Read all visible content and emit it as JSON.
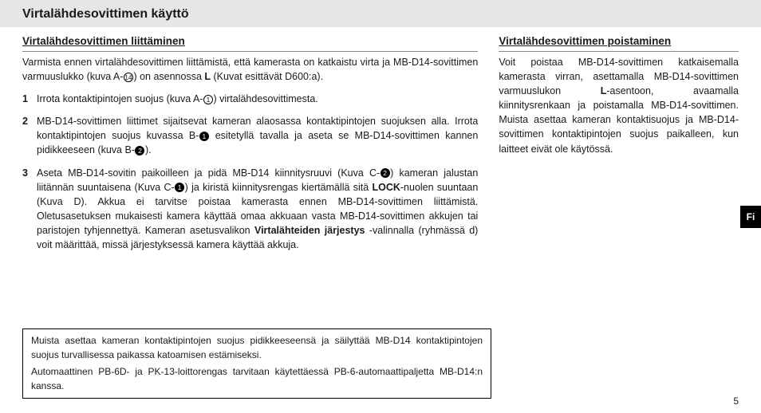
{
  "header": {
    "title": "Virtalähdesovittimen käyttö"
  },
  "left": {
    "subhead": "Virtalähdesovittimen liittäminen",
    "intro_a": "Varmista ennen virtalähdesovittimen liittämistä, että kamerasta on katkaistu virta ja MB-D14-sovittimen varmuuslukko (kuva A-",
    "intro_icon": "⑭",
    "intro_b": ") on asennossa ",
    "intro_bold": "L",
    "intro_c": " (Kuvat esittävät D600:a).",
    "step1_num": "1",
    "step1_a": "Irrota kontaktipintojen suojus (kuva A-",
    "step1_icon": "①",
    "step1_b": ") virtalähdesovittimesta.",
    "step2_num": "2",
    "step2_a": "MB-D14-sovittimen liittimet sijaitsevat kameran alaosassa kontaktipintojen suojuksen alla. Irrota kontaktipintojen suojus kuvassa B-",
    "step2_icon1": "❶",
    "step2_b": " esitetyllä tavalla ja aseta se MB-D14-sovittimen kannen pidikkeeseen (kuva B-",
    "step2_icon2": "❷",
    "step2_c": ").",
    "step3_num": "3",
    "step3_a": "Aseta MB-D14-sovitin paikoilleen ja pidä MB-D14 kiinnitysruuvi (Kuva C-",
    "step3_icon1": "❷",
    "step3_b": ") kameran jalustan liitännän suuntaisena (Kuva C-",
    "step3_icon2": "❶",
    "step3_c": ") ja kiristä kiinnitysrengas kiertämällä sitä ",
    "step3_lock": "LOCK",
    "step3_d": "-nuolen suuntaan (Kuva D). Akkua ei tarvitse poistaa kamerasta ennen MB-D14-sovittimen liittämistä. Oletusasetuksen mukaisesti kamera käyttää omaa akkuaan vasta MB-D14-sovittimen akkujen tai paristojen tyhjennettyä. Kameran asetusvalikon ",
    "step3_bold2": "Virtalähteiden järjestys",
    "step3_e": " -valinnalla (ryhmässä d) voit määrittää, missä järjestyksessä kamera käyttää akkuja."
  },
  "right": {
    "subhead": "Virtalähdesovittimen poistaminen",
    "p_a": "Voit poistaa MB-D14-sovittimen katkaisemalla kamerasta virran, asettamalla MB-D14-sovittimen varmuuslukon ",
    "p_bold": "L",
    "p_b": "-asentoon, avaamalla kiinnitysrenkaan ja poistamalla MB-D14-sovittimen. Muista asettaa kameran kontaktisuojus ja MB-D14-sovittimen kontaktipintojen suojus paikalleen, kun laitteet eivät ole käytössä."
  },
  "note": {
    "p1": "Muista asettaa kameran kontaktipintojen suojus pidikkeeseensä ja säilyttää MB-D14 kontaktipintojen suojus turvallisessa paikassa katoamisen estämiseksi.",
    "p2": "Automaattinen PB-6D- ja PK-13-loittorengas tarvitaan käytettäessä PB-6-automaattipaljetta MB-D14:n kanssa."
  },
  "tab": "Fi",
  "pagenum": "5"
}
